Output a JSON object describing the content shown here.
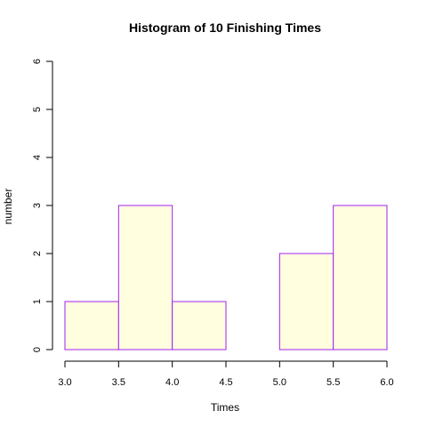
{
  "chart_data": {
    "type": "bar",
    "title": "Histogram of 10 Finishing Times",
    "xlabel": "Times",
    "ylabel": "number",
    "bins": [
      {
        "start": 3.0,
        "end": 3.5,
        "count": 1
      },
      {
        "start": 3.5,
        "end": 4.0,
        "count": 3
      },
      {
        "start": 4.0,
        "end": 4.5,
        "count": 1
      },
      {
        "start": 4.5,
        "end": 5.0,
        "count": 0
      },
      {
        "start": 5.0,
        "end": 5.5,
        "count": 2
      },
      {
        "start": 5.5,
        "end": 6.0,
        "count": 3
      }
    ],
    "xlim": [
      3.0,
      6.0
    ],
    "ylim": [
      0,
      6
    ],
    "x_ticks": [
      "3.0",
      "3.5",
      "4.0",
      "4.5",
      "5.0",
      "5.5",
      "6.0"
    ],
    "y_ticks": [
      "0",
      "1",
      "2",
      "3",
      "4",
      "5",
      "6"
    ],
    "bar_fill": "#FFFFE0",
    "bar_border": "#A020F0",
    "grid": false,
    "legend": "none"
  }
}
